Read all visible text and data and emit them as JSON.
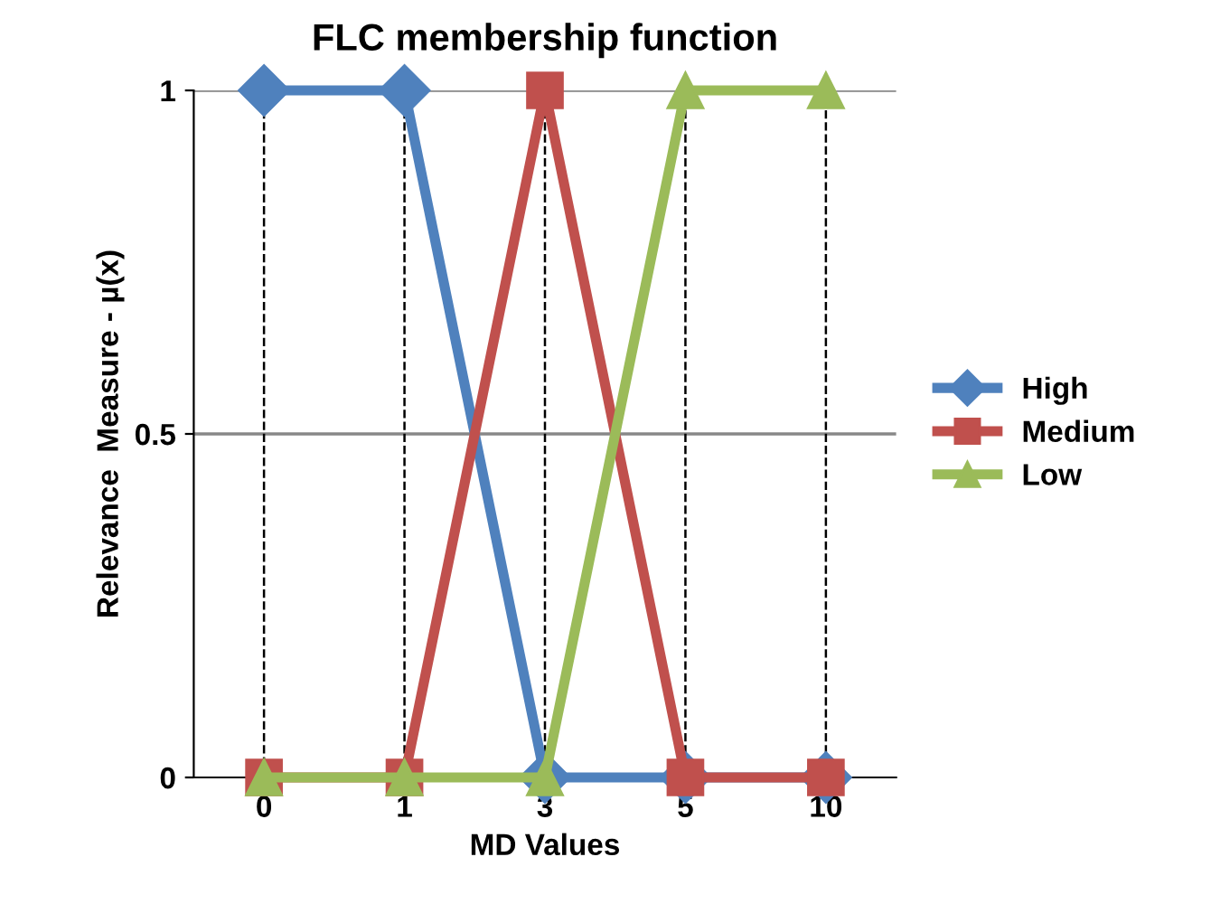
{
  "chart_data": {
    "type": "line",
    "title": "FLC membership function",
    "xlabel": "MD Values",
    "ylabel": "Relevance  Measure - µ(x)",
    "categories": [
      "0",
      "1",
      "3",
      "5",
      "10"
    ],
    "series": [
      {
        "name": "High",
        "color": "#4f81bd",
        "marker": "diamond",
        "values": [
          1,
          1,
          0,
          0,
          0
        ]
      },
      {
        "name": "Medium",
        "color": "#c0504d",
        "marker": "square",
        "values": [
          0,
          0,
          1,
          0,
          0
        ]
      },
      {
        "name": "Low",
        "color": "#9bbb59",
        "marker": "triangle",
        "values": [
          0,
          0,
          0,
          1,
          1
        ]
      }
    ],
    "ylim": [
      0,
      1
    ],
    "yticks": [
      0,
      0.5,
      1
    ],
    "legend": "right",
    "ref_lines": [
      {
        "axis": "y",
        "value": 0.5,
        "color": "#888888",
        "line_style": "solid"
      },
      {
        "axis": "y",
        "value": 1,
        "color": "#888888",
        "line_style": "solid"
      },
      {
        "axis": "x",
        "value": "0",
        "color": "#000000",
        "line_style": "dashed"
      },
      {
        "axis": "x",
        "value": "1",
        "color": "#000000",
        "line_style": "dashed"
      },
      {
        "axis": "x",
        "value": "3",
        "color": "#000000",
        "line_style": "dashed"
      },
      {
        "axis": "x",
        "value": "5",
        "color": "#000000",
        "line_style": "dashed"
      },
      {
        "axis": "x",
        "value": "10",
        "color": "#000000",
        "line_style": "dashed"
      }
    ]
  }
}
